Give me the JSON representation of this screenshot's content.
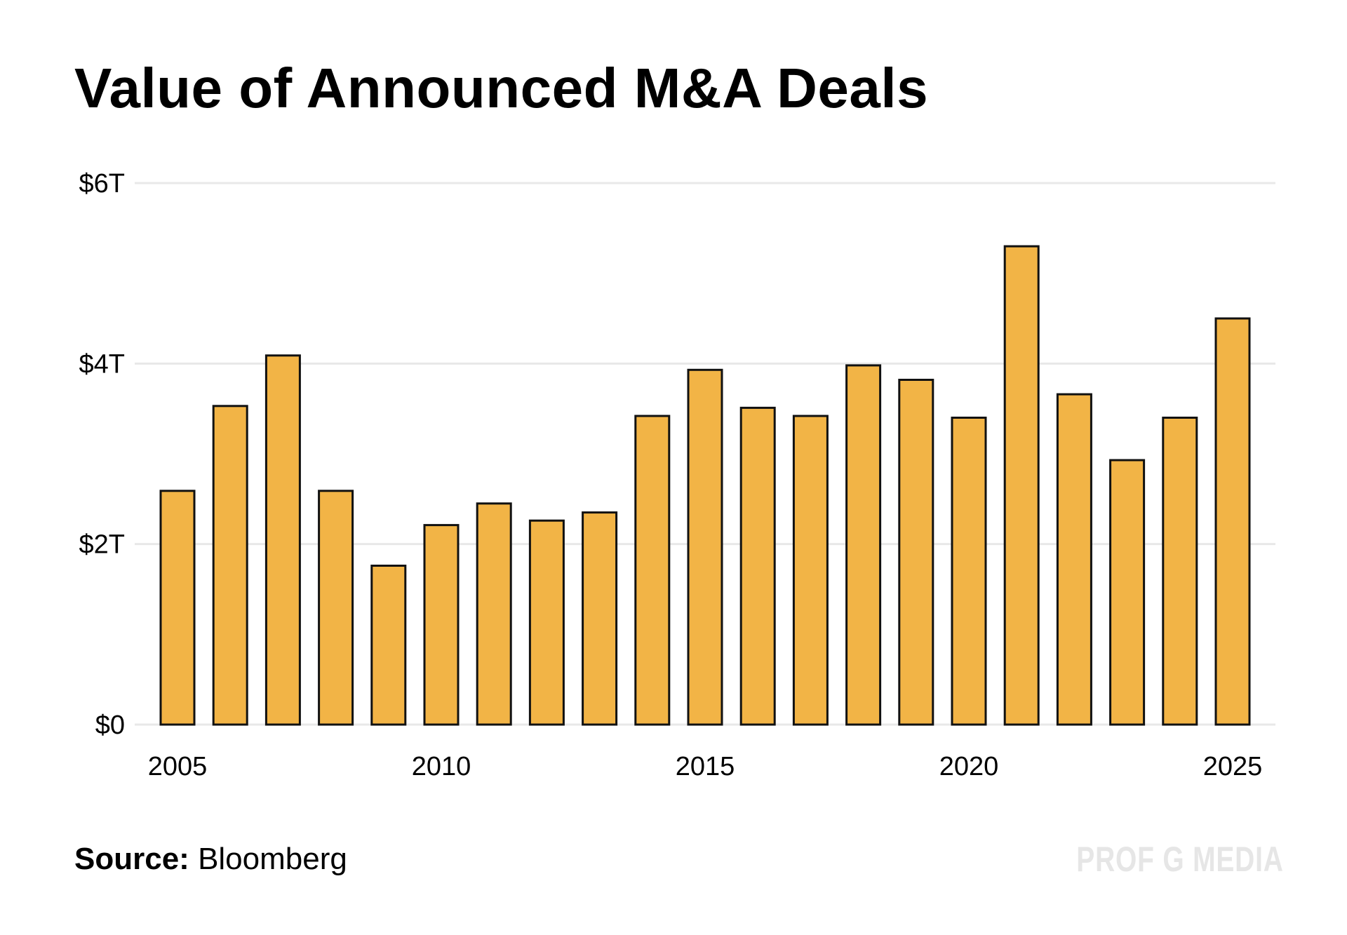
{
  "chart_data": {
    "type": "bar",
    "title": "Value of Announced M&A Deals",
    "xlabel": "",
    "ylabel": "",
    "categories": [
      "2005",
      "2006",
      "2007",
      "2008",
      "2009",
      "2010",
      "2011",
      "2012",
      "2013",
      "2014",
      "2015",
      "2016",
      "2017",
      "2018",
      "2019",
      "2020",
      "2021",
      "2022",
      "2023",
      "2024",
      "2025"
    ],
    "values": [
      2.59,
      3.53,
      4.09,
      2.59,
      1.76,
      2.21,
      2.45,
      2.26,
      2.35,
      3.42,
      3.93,
      3.51,
      3.42,
      3.98,
      3.82,
      3.4,
      5.3,
      3.66,
      2.93,
      3.4,
      4.5
    ],
    "unit": "trillion USD",
    "ylim": [
      0,
      6
    ],
    "y_ticks": [
      {
        "value": 0,
        "label": "$0"
      },
      {
        "value": 2,
        "label": "$2T"
      },
      {
        "value": 4,
        "label": "$4T"
      },
      {
        "value": 6,
        "label": "$6T"
      }
    ],
    "x_tick_labels": [
      "2005",
      "2010",
      "2015",
      "2020",
      "2025"
    ],
    "grid": true,
    "bar_color": "#F2B446",
    "bar_edge_color": "#111111",
    "grid_color": "#e8e8e8"
  },
  "footer": {
    "source_label": "Source:",
    "source_value": "Bloomberg",
    "watermark": "PROF G MEDIA"
  }
}
